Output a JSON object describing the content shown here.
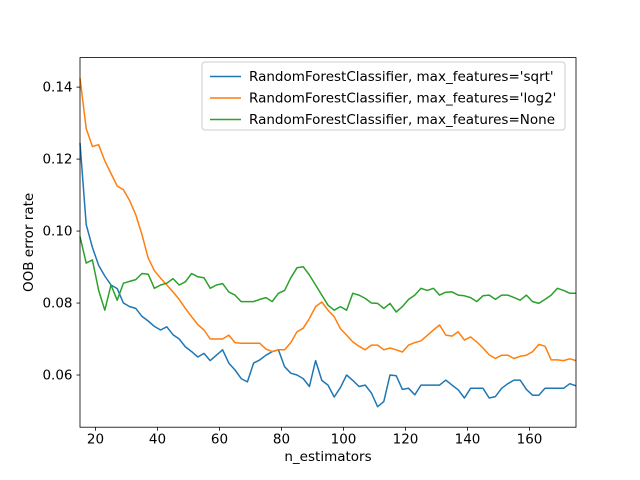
{
  "figure": {
    "xlabel": "n_estimators",
    "ylabel": "OOB error rate",
    "background": "#ffffff"
  },
  "legend": {
    "position": "upper right",
    "border_color": "#cccccc",
    "entries": [
      {
        "label": "RandomForestClassifier, max_features='sqrt'",
        "color": "#1f77b4"
      },
      {
        "label": "RandomForestClassifier, max_features='log2'",
        "color": "#ff7f0e"
      },
      {
        "label": "RandomForestClassifier, max_features=None",
        "color": "#2ca02c"
      }
    ]
  },
  "chart_data": {
    "type": "line",
    "title": "",
    "xlabel": "n_estimators",
    "ylabel": "OOB error rate",
    "grid": false,
    "legend_position": "upper right",
    "xlim": [
      15,
      175
    ],
    "ylim": [
      0.0455,
      0.1482
    ],
    "xticks": {
      "values": [
        20,
        40,
        60,
        80,
        100,
        120,
        140,
        160
      ],
      "labels": [
        "20",
        "40",
        "60",
        "80",
        "100",
        "120",
        "140",
        "160"
      ]
    },
    "yticks": {
      "values": [
        0.06,
        0.08,
        0.1,
        0.12,
        0.14
      ],
      "labels": [
        "0.06",
        "0.08",
        "0.10",
        "0.12",
        "0.14"
      ]
    },
    "x": [
      15,
      17,
      19,
      21,
      23,
      25,
      27,
      29,
      31,
      33,
      35,
      37,
      39,
      41,
      43,
      45,
      47,
      49,
      51,
      53,
      55,
      57,
      59,
      61,
      63,
      65,
      67,
      69,
      71,
      73,
      75,
      77,
      79,
      81,
      83,
      85,
      87,
      89,
      91,
      93,
      95,
      97,
      99,
      101,
      103,
      105,
      107,
      109,
      111,
      113,
      115,
      117,
      119,
      121,
      123,
      125,
      127,
      129,
      131,
      133,
      135,
      137,
      139,
      141,
      143,
      145,
      147,
      149,
      151,
      153,
      155,
      157,
      159,
      161,
      163,
      165,
      167,
      169,
      171,
      173,
      175
    ],
    "series": [
      {
        "key": "sqrt",
        "name": "RandomForestClassifier, max_features='sqrt'",
        "color": "#1f77b4",
        "values": [
          0.1245,
          0.1018,
          0.0955,
          0.0905,
          0.0875,
          0.085,
          0.084,
          0.08,
          0.079,
          0.0785,
          0.0763,
          0.075,
          0.0735,
          0.0725,
          0.0734,
          0.0712,
          0.07,
          0.0678,
          0.0665,
          0.065,
          0.066,
          0.064,
          0.0655,
          0.067,
          0.0633,
          0.0614,
          0.059,
          0.0581,
          0.0633,
          0.0642,
          0.0655,
          0.0665,
          0.067,
          0.0623,
          0.0605,
          0.06,
          0.059,
          0.0568,
          0.064,
          0.0585,
          0.0572,
          0.0539,
          0.0565,
          0.06,
          0.0585,
          0.0568,
          0.0572,
          0.055,
          0.0512,
          0.0526,
          0.06,
          0.0598,
          0.056,
          0.0563,
          0.0545,
          0.0572,
          0.0572,
          0.0572,
          0.0572,
          0.0586,
          0.0572,
          0.0559,
          0.0536,
          0.0563,
          0.0563,
          0.0563,
          0.0536,
          0.054,
          0.0563,
          0.0576,
          0.0586,
          0.0586,
          0.056,
          0.0544,
          0.0544,
          0.0563,
          0.0563,
          0.0563,
          0.0563,
          0.0576,
          0.057
        ]
      },
      {
        "key": "log2",
        "name": "RandomForestClassifier, max_features='log2'",
        "color": "#ff7f0e",
        "values": [
          0.1425,
          0.1285,
          0.1235,
          0.124,
          0.1195,
          0.116,
          0.1125,
          0.1115,
          0.1085,
          0.1045,
          0.099,
          0.0925,
          0.089,
          0.0869,
          0.085,
          0.0831,
          0.081,
          0.0785,
          0.0762,
          0.074,
          0.0725,
          0.07,
          0.07,
          0.07,
          0.0711,
          0.069,
          0.0688,
          0.0688,
          0.0688,
          0.0688,
          0.0672,
          0.0665,
          0.067,
          0.067,
          0.069,
          0.072,
          0.073,
          0.0757,
          0.079,
          0.0803,
          0.078,
          0.0762,
          0.0729,
          0.0711,
          0.0692,
          0.068,
          0.067,
          0.0683,
          0.0683,
          0.067,
          0.0675,
          0.067,
          0.0664,
          0.0683,
          0.069,
          0.0695,
          0.071,
          0.0725,
          0.0739,
          0.0711,
          0.0708,
          0.072,
          0.0697,
          0.0706,
          0.0692,
          0.0675,
          0.0656,
          0.0646,
          0.0655,
          0.0655,
          0.0646,
          0.0652,
          0.0655,
          0.0665,
          0.0685,
          0.068,
          0.0642,
          0.0642,
          0.064,
          0.0645,
          0.064
        ]
      },
      {
        "key": "none",
        "name": "RandomForestClassifier, max_features=None",
        "color": "#2ca02c",
        "values": [
          0.0985,
          0.0911,
          0.092,
          0.0836,
          0.078,
          0.085,
          0.0808,
          0.0855,
          0.086,
          0.0865,
          0.0882,
          0.088,
          0.0841,
          0.085,
          0.0855,
          0.0868,
          0.085,
          0.0859,
          0.0882,
          0.0873,
          0.087,
          0.0841,
          0.085,
          0.0854,
          0.0831,
          0.0822,
          0.0804,
          0.0804,
          0.0804,
          0.081,
          0.0815,
          0.0804,
          0.0827,
          0.0835,
          0.087,
          0.0898,
          0.0901,
          0.0878,
          0.085,
          0.0822,
          0.0794,
          0.078,
          0.079,
          0.078,
          0.0827,
          0.0822,
          0.0813,
          0.08,
          0.0799,
          0.0785,
          0.0799,
          0.0775,
          0.079,
          0.081,
          0.0822,
          0.0841,
          0.0835,
          0.0841,
          0.0822,
          0.083,
          0.0831,
          0.0822,
          0.082,
          0.0815,
          0.0804,
          0.082,
          0.0822,
          0.081,
          0.0822,
          0.0822,
          0.0815,
          0.0808,
          0.0822,
          0.0804,
          0.0799,
          0.081,
          0.0822,
          0.0841,
          0.0835,
          0.0827,
          0.0827
        ]
      }
    ]
  }
}
